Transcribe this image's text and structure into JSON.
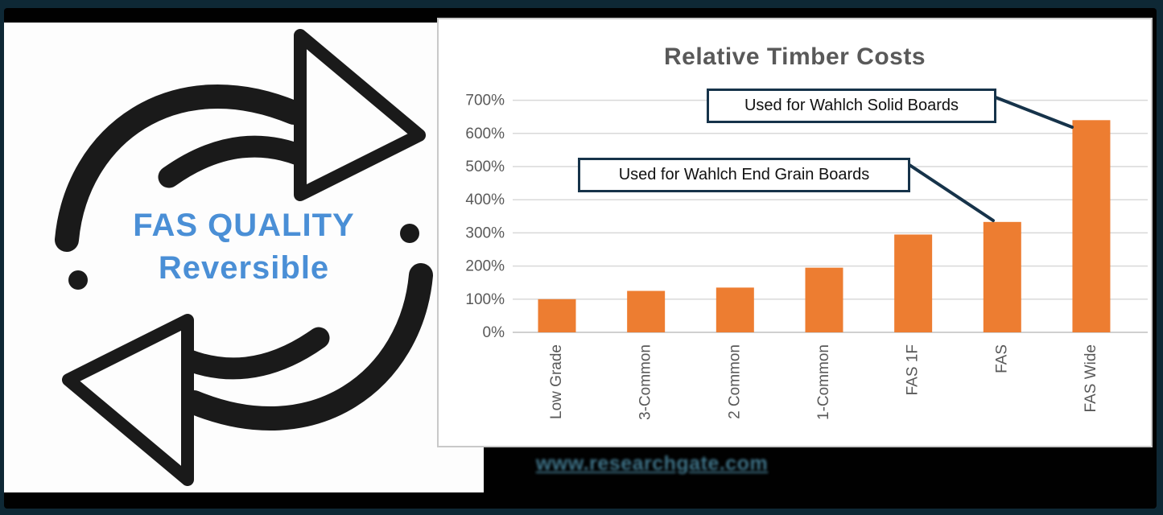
{
  "left_panel": {
    "heading": "FAS QUALITY",
    "subheading": "Reversible",
    "text_color": "#4a8fd6",
    "icon": "reversible-arrows-icon"
  },
  "chart": {
    "title": "Relative Timber Costs"
  },
  "chart_data": {
    "type": "bar",
    "title": "Relative Timber Costs",
    "categories": [
      "Low Grade",
      "3-Common",
      "2 Common",
      "1-Common",
      "FAS 1F",
      "FAS",
      "FAS Wide"
    ],
    "values": [
      100,
      125,
      135,
      195,
      295,
      333,
      640
    ],
    "value_unit": "%",
    "xlabel": "",
    "ylabel": "",
    "ylim": [
      0,
      700
    ],
    "ytick_labels": [
      "0%",
      "100%",
      "200%",
      "300%",
      "400%",
      "500%",
      "600%",
      "700%"
    ],
    "bar_color": "#ED7D31",
    "grid": true,
    "legend_position": "none",
    "annotations": [
      {
        "text": "Used for Wahlch Solid Boards",
        "points_to": "FAS Wide"
      },
      {
        "text": "Used for Wahlch End Grain Boards",
        "points_to": "FAS"
      }
    ]
  },
  "footer": {
    "website_text": "www.researchgate.com"
  },
  "colors": {
    "background_navy": "#0e2835",
    "backdrop_black": "#010101",
    "bar_orange": "#ED7D31",
    "callout_border_navy": "#16334a",
    "chart_text_gray": "#595959",
    "gridline_gray": "#d9d9d9",
    "heading_blue": "#4a8fd6",
    "website_teal": "#3f7388"
  }
}
